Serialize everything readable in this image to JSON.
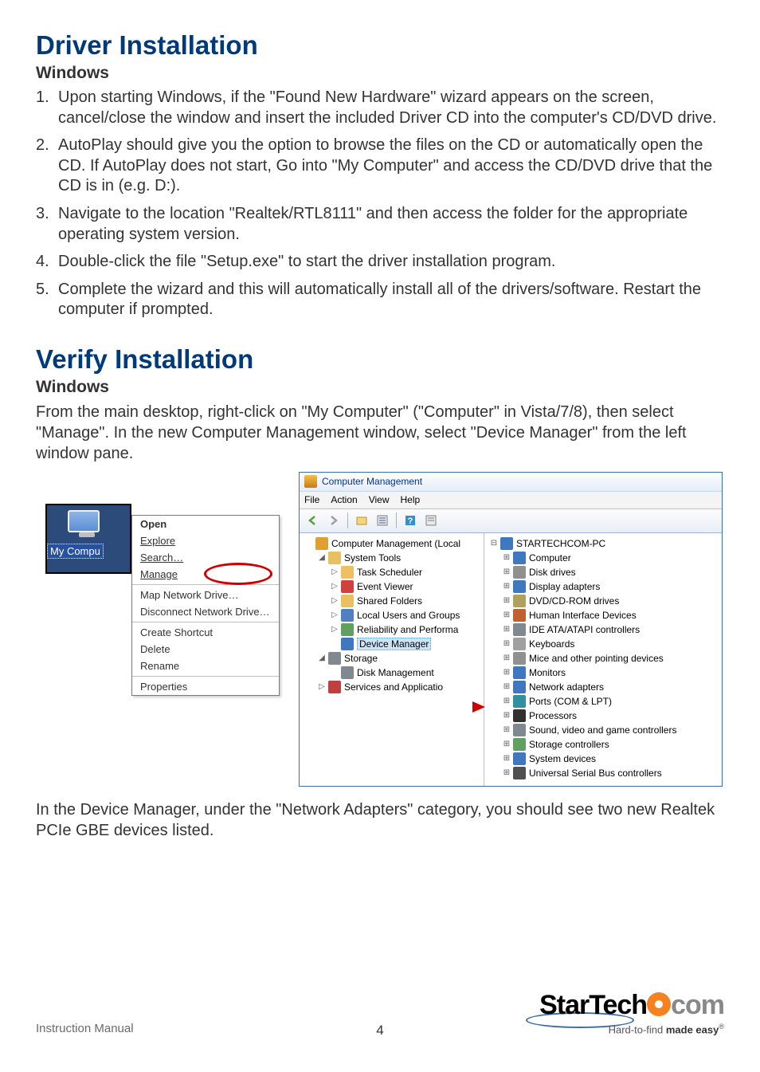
{
  "colors": {
    "heading": "#003a7a",
    "body": "#333333",
    "red_callout": "#d00000",
    "win_title": "#003399",
    "page_bg": "#ffffff",
    "orange": "#f58220",
    "grey_text": "#6a6a6a"
  },
  "fonts": {
    "body_family": "Myriad Pro / Segoe UI",
    "body_size_pt": 15,
    "h1_size_pt": 25,
    "h2_size_pt": 16,
    "screenshot_family": "Segoe UI / Tahoma",
    "screenshot_size_pt": 9
  },
  "sections": {
    "driver": {
      "title": "Driver Installation",
      "subtitle": "Windows",
      "steps": [
        "Upon starting Windows, if the \"Found New Hardware\" wizard appears on the screen, cancel/close the window and insert the included Driver CD into the computer's CD/DVD drive.",
        "AutoPlay should give you the option to browse the files on the CD or automatically open the CD.  If AutoPlay does not start, Go into \"My Computer\" and access the CD/DVD drive that the CD is in (e.g. D:).",
        "Navigate to the location \"Realtek/RTL8111\" and then access the folder for the appropriate operating system version.",
        "Double-click the file \"Setup.exe\" to start the driver installation program.",
        "Complete the wizard and this will automatically install all of the drivers/software. Restart the computer if prompted."
      ]
    },
    "verify": {
      "title": "Verify Installation",
      "subtitle": "Windows",
      "intro": "From the main desktop, right-click on \"My Computer\" (\"Computer\" in Vista/7/8), then select \"Manage\". In the new Computer Management window, select \"Device Manager\" from the left window pane.",
      "outro": "In the Device Manager, under the \"Network Adapters\" category, you should see two new Realtek PCIe GBE devices listed."
    }
  },
  "context_menu": {
    "icon_label": "My Compu",
    "groups": [
      [
        "Open",
        "Explore",
        "Search…",
        "Manage"
      ],
      [
        "Map Network Drive…",
        "Disconnect Network Drive…"
      ],
      [
        "Create Shortcut",
        "Delete",
        "Rename"
      ],
      [
        "Properties"
      ]
    ],
    "bold_item": "Open",
    "underline_items": [
      "Explore",
      "Search…",
      "Manage"
    ],
    "highlighted_item": "Manage"
  },
  "mgmt_window": {
    "title": "Computer Management",
    "menus": [
      "File",
      "Action",
      "View",
      "Help"
    ],
    "toolbar_icons": [
      "back-arrow",
      "forward-arrow",
      "sep",
      "up",
      "properties",
      "sep",
      "help",
      "refresh"
    ],
    "left_tree": [
      {
        "level": 0,
        "exp": "",
        "icon": "#e0a030",
        "label": "Computer Management (Local"
      },
      {
        "level": 1,
        "exp": "◢",
        "icon": "#e8c060",
        "label": "System Tools"
      },
      {
        "level": 2,
        "exp": "▷",
        "icon": "#f0c060",
        "label": "Task Scheduler"
      },
      {
        "level": 2,
        "exp": "▷",
        "icon": "#d04040",
        "label": "Event Viewer"
      },
      {
        "level": 2,
        "exp": "▷",
        "icon": "#e8c060",
        "label": "Shared Folders"
      },
      {
        "level": 2,
        "exp": "▷",
        "icon": "#5080c0",
        "label": "Local Users and Groups"
      },
      {
        "level": 2,
        "exp": "▷",
        "icon": "#60a060",
        "label": "Reliability and Performa"
      },
      {
        "level": 2,
        "exp": "",
        "icon": "#4078c0",
        "label": "Device Manager",
        "selected": true
      },
      {
        "level": 1,
        "exp": "◢",
        "icon": "#808890",
        "label": "Storage"
      },
      {
        "level": 2,
        "exp": "",
        "icon": "#808890",
        "label": "Disk Management"
      },
      {
        "level": 1,
        "exp": "▷",
        "icon": "#c04040",
        "label": "Services and Applicatio"
      }
    ],
    "right_tree": [
      {
        "level": 0,
        "exp": "⊟",
        "icon": "#4078c0",
        "label": "STARTECHCOM-PC"
      },
      {
        "level": 1,
        "exp": "⊞",
        "icon": "#4078c0",
        "label": "Computer"
      },
      {
        "level": 1,
        "exp": "⊞",
        "icon": "#909090",
        "label": "Disk drives"
      },
      {
        "level": 1,
        "exp": "⊞",
        "icon": "#4078c0",
        "label": "Display adapters"
      },
      {
        "level": 1,
        "exp": "⊞",
        "icon": "#b0a060",
        "label": "DVD/CD-ROM drives"
      },
      {
        "level": 1,
        "exp": "⊞",
        "icon": "#c06030",
        "label": "Human Interface Devices"
      },
      {
        "level": 1,
        "exp": "⊞",
        "icon": "#808890",
        "label": "IDE ATA/ATAPI controllers"
      },
      {
        "level": 1,
        "exp": "⊞",
        "icon": "#a0a0a0",
        "label": "Keyboards"
      },
      {
        "level": 1,
        "exp": "⊞",
        "icon": "#909090",
        "label": "Mice and other pointing devices"
      },
      {
        "level": 1,
        "exp": "⊞",
        "icon": "#4078c0",
        "label": "Monitors"
      },
      {
        "level": 1,
        "exp": "⊞",
        "icon": "#4078c0",
        "label": "Network adapters",
        "highlight": true
      },
      {
        "level": 1,
        "exp": "⊞",
        "icon": "#3090a0",
        "label": "Ports (COM & LPT)"
      },
      {
        "level": 1,
        "exp": "⊞",
        "icon": "#303030",
        "label": "Processors"
      },
      {
        "level": 1,
        "exp": "⊞",
        "icon": "#808890",
        "label": "Sound, video and game controllers"
      },
      {
        "level": 1,
        "exp": "⊞",
        "icon": "#60a060",
        "label": "Storage controllers"
      },
      {
        "level": 1,
        "exp": "⊞",
        "icon": "#4078c0",
        "label": "System devices"
      },
      {
        "level": 1,
        "exp": "⊞",
        "icon": "#505050",
        "label": "Universal Serial Bus controllers"
      }
    ]
  },
  "footer": {
    "left": "Instruction Manual",
    "page_number": "4",
    "logo_main": "StarTech",
    "logo_suffix": "com",
    "tagline_pre": "Hard-to-find ",
    "tagline_bold": "made easy",
    "tagline_reg": "®"
  }
}
